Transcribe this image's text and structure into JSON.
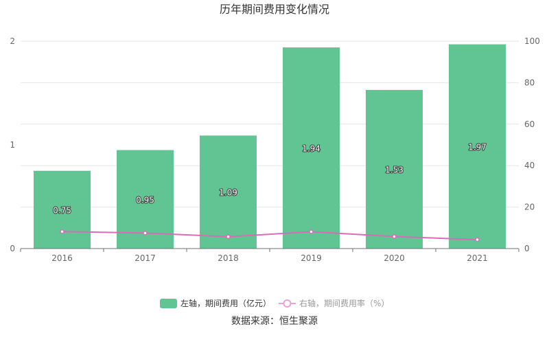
{
  "chart_data": {
    "type": "bar",
    "title": "历年期间费用变化情况",
    "categories": [
      "2016",
      "2017",
      "2018",
      "2019",
      "2020",
      "2021"
    ],
    "series": [
      {
        "name": "左轴，期间费用（亿元）",
        "type": "bar",
        "axis": "left",
        "values": [
          0.75,
          0.95,
          1.09,
          1.94,
          1.53,
          1.97
        ],
        "data_labels": [
          "0.75",
          "0.95",
          "1.09",
          "1.94",
          "1.53",
          "1.97"
        ],
        "color": "#60c493"
      },
      {
        "name": "右轴，期间费用率（%）",
        "type": "line",
        "axis": "right",
        "values": [
          8.2,
          7.5,
          5.7,
          8.1,
          5.8,
          4.3
        ],
        "color": "#d86cb6"
      }
    ],
    "y_left": {
      "ylim": [
        0,
        2
      ],
      "ticks": [
        "0",
        "1",
        "2"
      ]
    },
    "y_right": {
      "ylim": [
        0,
        100
      ],
      "ticks": [
        "0",
        "20",
        "40",
        "60",
        "80",
        "100"
      ]
    },
    "grid": true,
    "legend_position": "bottom"
  },
  "source_text": "数据来源：恒生聚源"
}
